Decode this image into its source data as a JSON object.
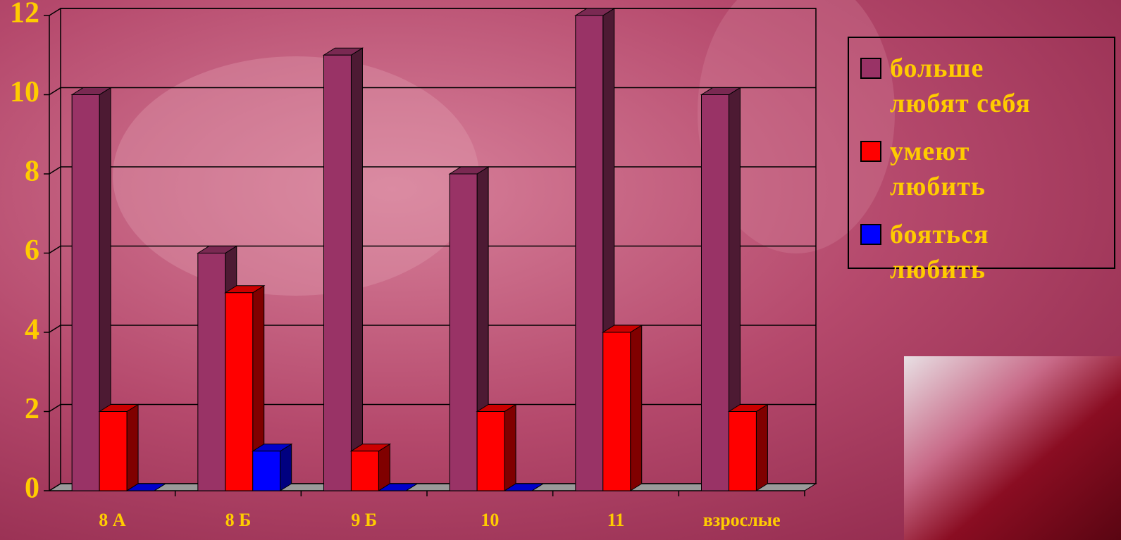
{
  "chart_data": {
    "type": "bar3d",
    "categories": [
      "8 А",
      "8 Б",
      "9 Б",
      "10",
      "11",
      "взрослые"
    ],
    "series": [
      {
        "name": "больше любят себя",
        "color": "#993366",
        "values": [
          10,
          6,
          11,
          8,
          12,
          10
        ]
      },
      {
        "name": "умеют любить",
        "color": "#ff0000",
        "values": [
          2,
          5,
          1,
          2,
          4,
          2
        ]
      },
      {
        "name": "бояться любить",
        "color": "#0000ff",
        "values": [
          0,
          1,
          0,
          0,
          null,
          null
        ]
      }
    ],
    "ylim": [
      0,
      12
    ],
    "yticks": [
      0,
      2,
      4,
      6,
      8,
      10,
      12
    ],
    "grid": true,
    "legend": "right"
  }
}
